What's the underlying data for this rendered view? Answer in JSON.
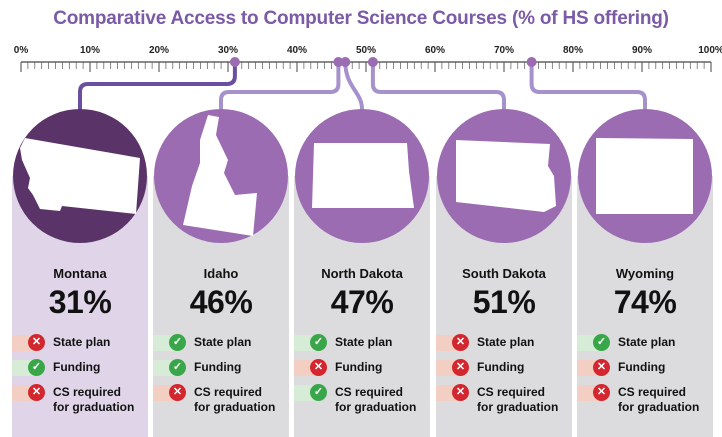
{
  "title": "Comparative Access to Computer Science Courses (% of HS offering)",
  "colors": {
    "title": "#7b5aa6",
    "highlight_circle": "#5a3468",
    "circle": "#9b6cb2",
    "line_dark": "#6a4fa0",
    "line_light": "#a592cc",
    "yes": "#3aa64a",
    "no": "#d3262f",
    "yes_band": "#d7ecd6",
    "no_band": "#f3cfc3"
  },
  "chart_data": {
    "type": "number-line",
    "title": "Comparative Access to Computer Science Courses (% of HS offering)",
    "xlim": [
      0,
      100
    ],
    "tick_labels": [
      "0%",
      "10%",
      "20%",
      "30%",
      "40%",
      "50%",
      "60%",
      "70%",
      "80%",
      "90%",
      "100%"
    ],
    "points": [
      {
        "state": "Montana",
        "value": 31,
        "label": "31%",
        "state_plan": false,
        "funding": true,
        "cs_required": false,
        "highlight": true
      },
      {
        "state": "Idaho",
        "value": 46,
        "label": "46%",
        "state_plan": true,
        "funding": true,
        "cs_required": false
      },
      {
        "state": "North Dakota",
        "value": 47,
        "label": "47%",
        "state_plan": true,
        "funding": false,
        "cs_required": true
      },
      {
        "state": "South Dakota",
        "value": 51,
        "label": "51%",
        "state_plan": false,
        "funding": false,
        "cs_required": false
      },
      {
        "state": "Wyoming",
        "value": 74,
        "label": "74%",
        "state_plan": true,
        "funding": false,
        "cs_required": false
      }
    ]
  },
  "criteria": {
    "state_plan": "State plan",
    "funding": "Funding",
    "cs_required_1": "CS required",
    "cs_required_2": "for graduation"
  },
  "icons": {
    "yes": "check-circle-icon",
    "no": "x-circle-icon"
  }
}
